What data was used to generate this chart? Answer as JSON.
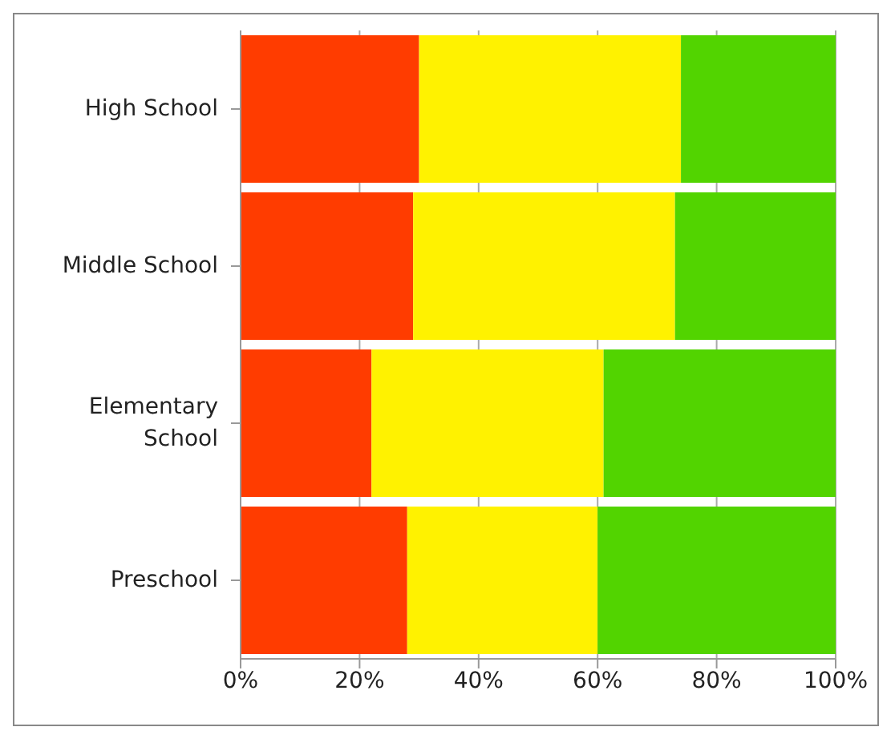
{
  "chart_data": {
    "type": "bar",
    "orientation": "horizontal",
    "stacked": true,
    "categories": [
      "High School",
      "Middle School",
      "Elementary School",
      "Preschool"
    ],
    "series": [
      {
        "color": "#ff3c00",
        "values": [
          30,
          29,
          22,
          28
        ]
      },
      {
        "color": "#fff200",
        "values": [
          44,
          44,
          39,
          32
        ]
      },
      {
        "color": "#52d400",
        "values": [
          26,
          27,
          39,
          40
        ]
      }
    ],
    "xlim": [
      0,
      100
    ],
    "xticks": [
      {
        "value": 0,
        "label": "0%"
      },
      {
        "value": 20,
        "label": "20%"
      },
      {
        "value": 40,
        "label": "40%"
      },
      {
        "value": 60,
        "label": "60%"
      },
      {
        "value": 80,
        "label": "80%"
      },
      {
        "value": 100,
        "label": "100%"
      }
    ],
    "grid": "x",
    "legend": false
  }
}
